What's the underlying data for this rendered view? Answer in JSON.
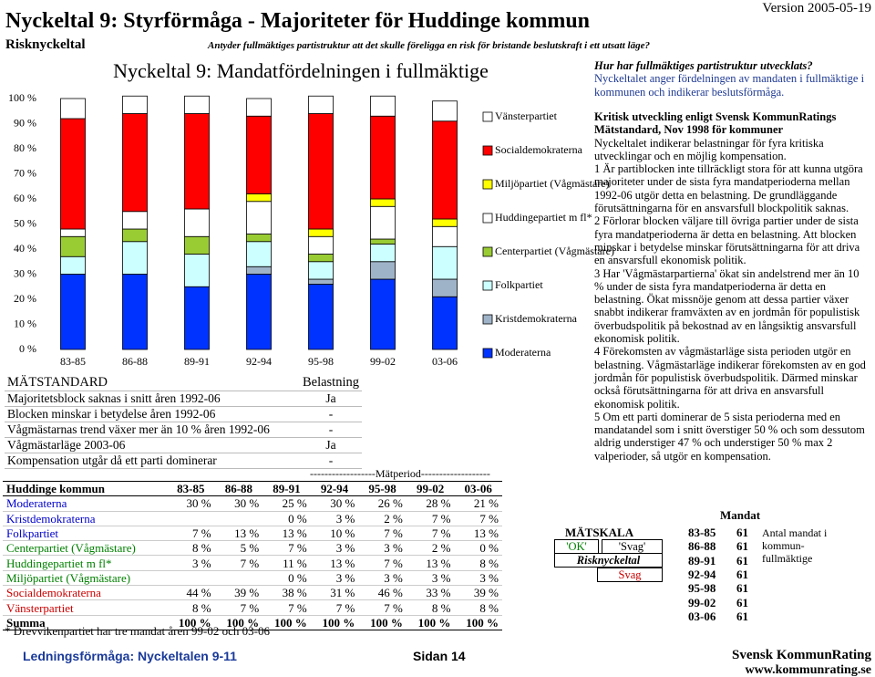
{
  "header": {
    "title": "Nyckeltal 9: Styrförmåga - Majoriteter för Huddinge kommun",
    "version": "Version 2005-05-19",
    "category": "Risknyckeltal",
    "subtitle": "Antyder fullmäktiges partistruktur att det skulle föreligga en risk för bristande beslutskraft i ett utsatt läge?"
  },
  "chart_data": {
    "type": "bar",
    "stacked": true,
    "title": "Nyckeltal 9: Mandatfördelningen i fullmäktige",
    "categories": [
      "83-85",
      "86-88",
      "89-91",
      "92-94",
      "95-98",
      "99-02",
      "03-06"
    ],
    "series": [
      {
        "name": "Moderaterna",
        "color": "#0033ff",
        "values": [
          30,
          30,
          25,
          30,
          26,
          28,
          21
        ]
      },
      {
        "name": "Kristdemokraterna",
        "color": "#9fb3c8",
        "values": [
          null,
          null,
          0,
          3,
          2,
          7,
          7
        ]
      },
      {
        "name": "Folkpartiet",
        "color": "#ccffff",
        "values": [
          7,
          13,
          13,
          10,
          7,
          7,
          13
        ]
      },
      {
        "name": "Centerpartiet (Vågmästare)",
        "color": "#99cc33",
        "values": [
          8,
          5,
          7,
          3,
          3,
          2,
          0
        ]
      },
      {
        "name": "Huddingepartiet m fl*",
        "color": "#ffffff",
        "values": [
          3,
          7,
          11,
          13,
          7,
          13,
          8
        ]
      },
      {
        "name": "Miljöpartiet (Vågmästare)",
        "color": "#ffff00",
        "values": [
          null,
          null,
          0,
          3,
          3,
          3,
          3
        ]
      },
      {
        "name": "Socialdemokraterna",
        "color": "#ff0000",
        "values": [
          44,
          39,
          38,
          31,
          46,
          33,
          39
        ]
      },
      {
        "name": "Vänsterpartiet",
        "color": "#ffffff",
        "values": [
          8,
          7,
          7,
          7,
          7,
          8,
          8
        ]
      }
    ],
    "ylim": [
      0,
      100
    ],
    "yticks": [
      {
        "value": 0,
        "label": "0 %"
      },
      {
        "value": 10,
        "label": "10 %"
      },
      {
        "value": 20,
        "label": "20 %"
      },
      {
        "value": 30,
        "label": "30 %"
      },
      {
        "value": 40,
        "label": "40 %"
      },
      {
        "value": 50,
        "label": "50 %"
      },
      {
        "value": 60,
        "label": "60 %"
      },
      {
        "value": 70,
        "label": "70 %"
      },
      {
        "value": 80,
        "label": "80 %"
      },
      {
        "value": 90,
        "label": "90 %"
      },
      {
        "value": 100,
        "label": "100 %"
      }
    ]
  },
  "standard": {
    "header": [
      "MÄTSTANDARD",
      "Belastning"
    ],
    "rows": [
      [
        "Majoritetsblock saknas i snitt åren 1992-06",
        "Ja"
      ],
      [
        "Blocken minskar i betydelse åren 1992-06",
        "-"
      ],
      [
        "Vågmästarnas trend växer mer än 10 % åren 1992-06",
        "-"
      ],
      [
        "Vågmästarläge 2003-06",
        "Ja"
      ],
      [
        "Kompensation utgår då ett parti dominerar",
        "-"
      ]
    ]
  },
  "period_label": "------------------Mätperiod-------------------",
  "table": {
    "header": [
      "Huddinge kommun",
      "83-85",
      "86-88",
      "89-91",
      "92-94",
      "95-98",
      "99-02",
      "03-06"
    ],
    "rows": [
      [
        "Moderaterna",
        "30 %",
        "30 %",
        "25 %",
        "30 %",
        "26 %",
        "28 %",
        "21 %"
      ],
      [
        "Kristdemokraterna",
        null,
        null,
        "0 %",
        "3 %",
        "2 %",
        "7 %",
        "7 %"
      ],
      [
        "Folkpartiet",
        "7 %",
        "13 %",
        "13 %",
        "10 %",
        "7 %",
        "7 %",
        "13 %"
      ],
      [
        "Centerpartiet (Vågmästare)",
        "8 %",
        "5 %",
        "7 %",
        "3 %",
        "3 %",
        "2 %",
        "0 %"
      ],
      [
        "Huddingepartiet m fl*",
        "3 %",
        "7 %",
        "11 %",
        "13 %",
        "7 %",
        "13 %",
        "8 %"
      ],
      [
        "Miljöpartiet (Vågmästare)",
        null,
        null,
        "0 %",
        "3 %",
        "3 %",
        "3 %",
        "3 %"
      ],
      [
        "Socialdemokraterna",
        "44 %",
        "39 %",
        "38 %",
        "31 %",
        "46 %",
        "33 %",
        "39 %"
      ],
      [
        "Vänsterpartiet",
        "8 %",
        "7 %",
        "7 %",
        "7 %",
        "7 %",
        "8 %",
        "8 %"
      ],
      [
        "Summa",
        "100 %",
        "100 %",
        "100 %",
        "100 %",
        "100 %",
        "100 %",
        "100 %"
      ]
    ],
    "footnote": "* Drevvikenpartiet har tre mandat åren 99-02 och 03-06"
  },
  "text": {
    "question": "Hur har fullmäktiges partistruktur utvecklats?",
    "answer": "Nyckeltalet anger fördelningen av mandaten i fullmäktige i kommunen och indikerar beslutsförmåga.",
    "heading": "Kritisk utveckling enligt Svensk KommunRatings Mätstandard, Nov 1998 för kommuner",
    "paragraphs": [
      "Nyckeltalet indikerar belastningar för fyra kritiska utvecklingar och en möjlig kompensation.",
      "1 Är partiblocken inte tillräckligt stora för att kunna utgöra majoriteter under de sista fyra mandatperioderna mellan 1992-06 utgör detta en belastning. De grundläggande förutsättningarna för en ansvarsfull blockpolitik saknas.",
      "2 Förlorar blocken väljare till övriga partier under de sista fyra mandatperioderna är detta en belastning. Att blocken minskar i betydelse minskar förutsättningarna för att driva en ansvarsfull ekonomisk politik.",
      "3 Har 'Vågmästarpartierna' ökat sin andelstrend mer än 10 % under de sista fyra mandatperioderna är detta en belastning. Ökat missnöje genom att dessa partier växer snabbt indikerar framväxten av en jordmån för populistisk överbudspolitik på bekostnad av en långsiktig ansvarsfull ekonomisk politik.",
      "4 Förekomsten av vågmästarläge sista perioden utgör en belastning. Vågmästarläge indikerar förekomsten av en god jordmån för populistisk överbudspolitik. Därmed minskar också förutsättningarna för att driva en ansvarsfull ekonomisk politik.",
      "5 Om ett parti dominerar de 5 sista perioderna med en mandatandel som i snitt överstiger 50 % och som dessutom aldrig understiger 47 % och understiger 50 % max 2 valperioder, så utgör en kompensation."
    ]
  },
  "scale": {
    "mandat_header": "Mandat",
    "label": "MÄTSKALA",
    "ok": "'OK'",
    "weak": "'Svag'",
    "risk": "Risknyckeltal",
    "result": "Svag",
    "rows": [
      [
        "83-85",
        61
      ],
      [
        "86-88",
        61
      ],
      [
        "89-91",
        61
      ],
      [
        "92-94",
        61
      ],
      [
        "95-98",
        61
      ],
      [
        "99-02",
        61
      ],
      [
        "03-06",
        61
      ]
    ],
    "note": "Antal mandat i kommun-fullmäktige"
  },
  "footer": {
    "section": "Ledningsförmåga: Nyckeltalen 9-11",
    "page": "Sidan 14",
    "company": "Svensk KommunRating",
    "url": "www.kommunrating.se"
  }
}
